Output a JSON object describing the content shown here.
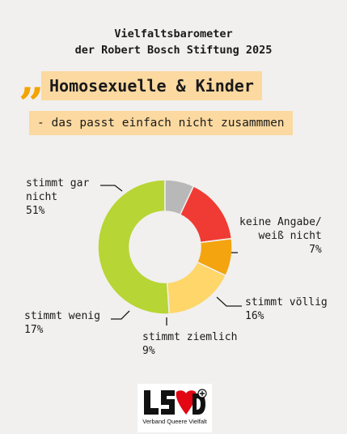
{
  "header": {
    "line1": "Vielfaltsbarometer",
    "line2": "der Robert Bosch Stiftung 2025"
  },
  "quote": {
    "mark": "„",
    "title": "Homosexuelle & Kinder",
    "subtitle": "- das passt einfach nicht zusammmen"
  },
  "colors": {
    "accent": "#f4a300",
    "highlight": "#fbd9a0",
    "background": "#f1f0ee"
  },
  "chart_data": {
    "type": "pie",
    "categories": [
      "stimmt gar nicht",
      "keine Angabe/ weiß nicht",
      "stimmt völlig",
      "stimmt ziemlich",
      "stimmt wenig"
    ],
    "values": [
      51,
      7,
      16,
      9,
      17
    ],
    "colors": [
      "#b7d534",
      "#b8b8b8",
      "#ef3b33",
      "#f4a40f",
      "#fed66a"
    ],
    "value_labels": [
      "51%",
      "7%",
      "16%",
      "9%",
      "17%"
    ],
    "donut": true
  },
  "labels": {
    "gar_nicht_line1": "stimmt gar",
    "gar_nicht_line2": "nicht",
    "angabe_line1": "keine Angabe/",
    "angabe_line2": "weiß nicht",
    "voellig": "stimmt völlig",
    "ziemlich": "stimmt ziemlich",
    "wenig": "stimmt wenig"
  },
  "logo": {
    "icon": "lsvd-plus-logo",
    "text": "Verband Queere Vielfalt"
  }
}
